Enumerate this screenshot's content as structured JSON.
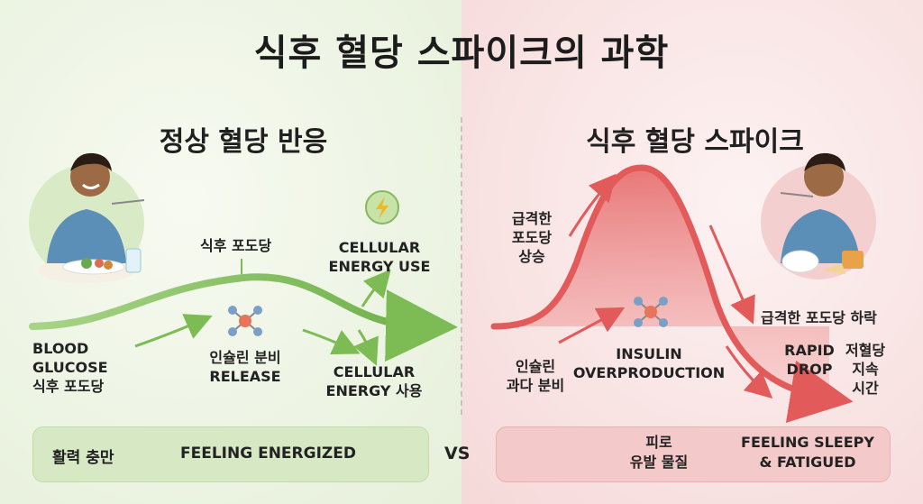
{
  "title": "식후 혈당 스파이크의 과학",
  "left": {
    "subtitle": "정상 혈당 반응",
    "blood_glucose": [
      "BLOOD",
      "GLUCOSE",
      "식후 포도당"
    ],
    "post_meal_glucose": "식후 포도당",
    "insulin": [
      "인슐린 분비",
      "RELEASE"
    ],
    "energy_use_top": [
      "CELLULAR",
      "ENERGY USE"
    ],
    "energy_use_bottom": [
      "CELLULAR",
      "ENERGY 사용"
    ],
    "bar": {
      "label_ko": "활력 충만",
      "label_en": "FEELING ENERGIZED"
    }
  },
  "right": {
    "subtitle": "식후 혈당 스파이크",
    "rapid_rise": [
      "급격한",
      "포도당",
      "상승"
    ],
    "insulin_ko": [
      "인슐린",
      "과다 분비"
    ],
    "insulin_en": [
      "INSULIN",
      "OVERPRODUCTION"
    ],
    "rapid_fall": "급격한 포도당 하락",
    "rapid_drop": [
      "RAPID",
      "DROP"
    ],
    "hypo_duration": [
      "저혈당",
      "지속",
      "시간"
    ],
    "bar": {
      "fatigue_ko": [
        "피로",
        "유발 물질"
      ],
      "label_en": [
        "FEELING SLEEPY",
        "& FATIGUED"
      ]
    }
  },
  "vs": "VS",
  "colors": {
    "green": "#7dbb55",
    "red": "#e25a5a",
    "green_light": "#d7e8c4",
    "red_light": "#f4c9c9"
  },
  "icons": [
    "person-eating-icon",
    "lightning-icon",
    "molecule-icon",
    "smiley-icon",
    "sleepy-face-icon",
    "tired-person-icon"
  ]
}
